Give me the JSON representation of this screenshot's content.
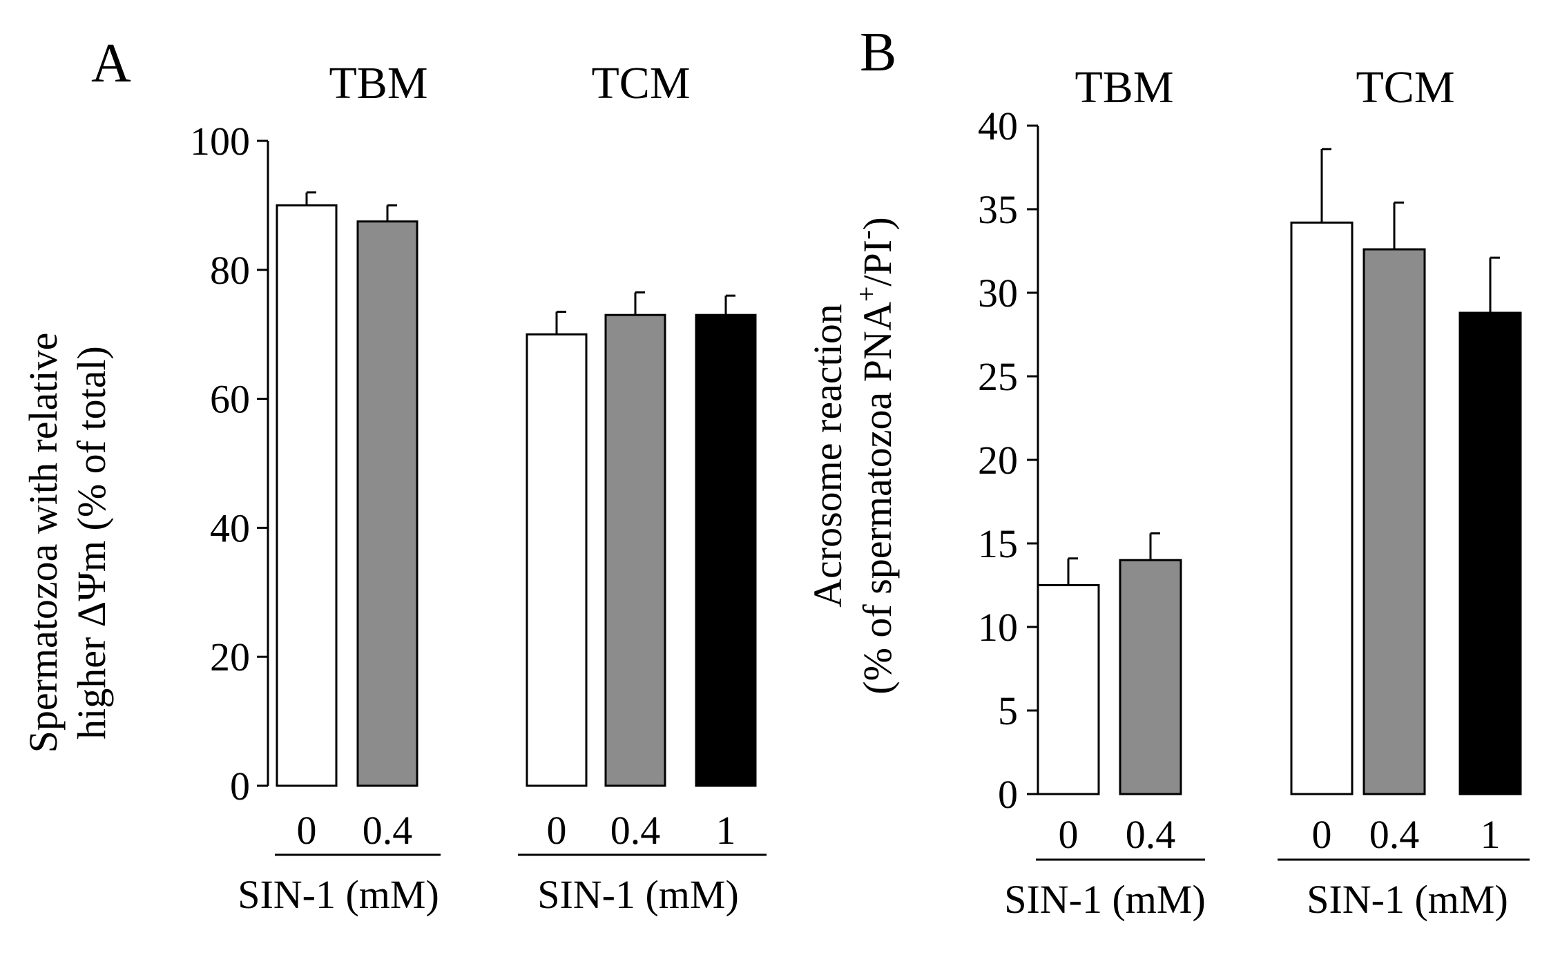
{
  "colors": {
    "control": "#ffffff",
    "low": "#8c8c8c",
    "high": "#000000"
  },
  "chart_data": [
    {
      "type": "bar",
      "panel": "A",
      "ylabel": [
        "Spermatozoa with relative",
        "higher ΔΨm (% of total)"
      ],
      "ylim": [
        0,
        100
      ],
      "yticks": [
        0,
        20,
        40,
        60,
        80,
        100
      ],
      "groups": [
        {
          "title": "TBM",
          "xlabel": "SIN-1 (mM)",
          "categories": [
            "0",
            "0.4"
          ],
          "values": [
            90,
            87.5
          ],
          "errors": [
            2,
            2.5
          ],
          "colors": [
            "control",
            "low"
          ]
        },
        {
          "title": "TCM",
          "xlabel": "SIN-1 (mM)",
          "categories": [
            "0",
            "0.4",
            "1"
          ],
          "values": [
            70,
            73,
            73
          ],
          "errors": [
            3.5,
            3.5,
            3
          ]
        }
      ]
    },
    {
      "type": "bar",
      "panel": "B",
      "ylabel": [
        "Acrosome reaction",
        "(% of spermatozoa PNA",
        "+",
        "/PI",
        "-",
        ")"
      ],
      "ylim": [
        0,
        40
      ],
      "yticks": [
        0,
        5,
        10,
        15,
        20,
        25,
        30,
        35,
        40
      ],
      "groups": [
        {
          "title": "TBM",
          "xlabel": "SIN-1 (mM)",
          "categories": [
            "0",
            "0.4"
          ],
          "values": [
            12.5,
            14
          ],
          "errors": [
            1.6,
            1.6
          ]
        },
        {
          "title": "TCM",
          "xlabel": "SIN-1 (mM)",
          "categories": [
            "0",
            "0.4",
            "1"
          ],
          "values": [
            34.2,
            32.6,
            28.8
          ],
          "errors": [
            4.4,
            2.8,
            3.3
          ]
        }
      ]
    }
  ]
}
